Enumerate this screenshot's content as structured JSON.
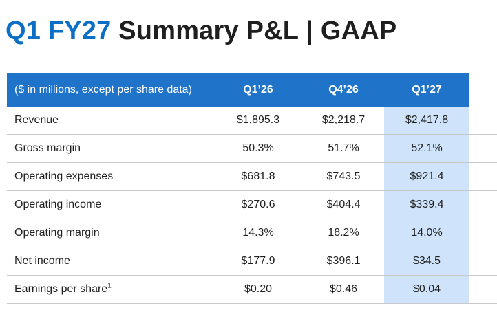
{
  "title": {
    "accent": "Q1 FY27",
    "main": "Summary P&L | GAAP"
  },
  "table": {
    "header": [
      "($ in millions, except per share data)",
      "Q1’26",
      "Q4’26",
      "Q1’27"
    ],
    "rows": [
      {
        "label": "Revenue",
        "sup": "",
        "q1_26": "$1,895.3",
        "q4_26": "$2,218.7",
        "q1_27": "$2,417.8",
        "extra": ""
      },
      {
        "label": "Gross margin",
        "sup": "",
        "q1_26": "50.3%",
        "q4_26": "51.7%",
        "q1_27": "52.1%",
        "extra": "+"
      },
      {
        "label": "Operating expenses",
        "sup": "",
        "q1_26": "$681.8",
        "q4_26": "$743.5",
        "q1_27": "$921.4",
        "extra": ""
      },
      {
        "label": "Operating income",
        "sup": "",
        "q1_26": "$270.6",
        "q4_26": "$404.4",
        "q1_27": "$339.4",
        "extra": ""
      },
      {
        "label": "Operating margin",
        "sup": "",
        "q1_26": "14.3%",
        "q4_26": "18.2%",
        "q1_27": "14.0%",
        "extra": "-"
      },
      {
        "label": "Net income",
        "sup": "",
        "q1_26": "$177.9",
        "q4_26": "$396.1",
        "q1_27": "$34.5",
        "extra": ""
      },
      {
        "label": "Earnings per share",
        "sup": "1",
        "q1_26": "$0.20",
        "q4_26": "$0.46",
        "q1_27": "$0.04",
        "extra": ""
      }
    ]
  },
  "colors": {
    "accent": "#0b6fc6",
    "header_bg": "#1f73c9",
    "highlight_col": "#cfe4fb"
  }
}
